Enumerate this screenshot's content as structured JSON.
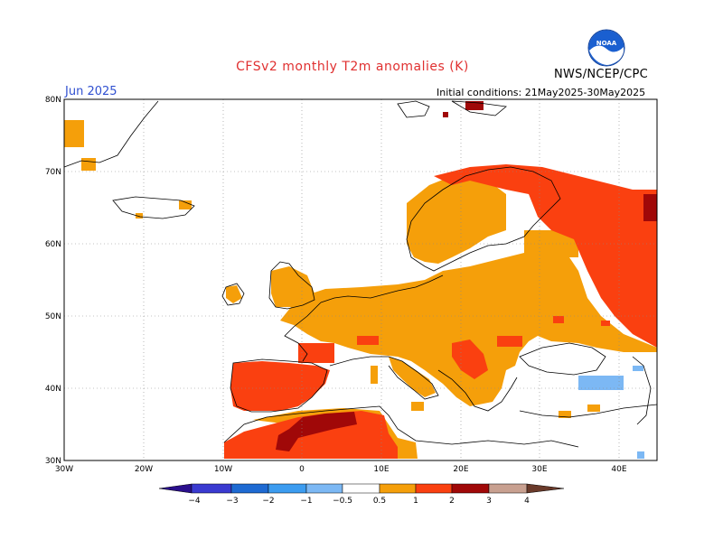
{
  "header": {
    "title": "CFSv2 monthly T2m anomalies (K)",
    "agency": "NWS/NCEP/CPC",
    "forecast_month": "Jun 2025",
    "initial_conditions": "Initial conditions: 21May2025-30May2025"
  },
  "map": {
    "region": "Europe",
    "lon_range": [
      -30,
      45
    ],
    "lat_range": [
      30,
      80
    ],
    "lat_labels": [
      "80N",
      "70N",
      "60N",
      "50N",
      "40N",
      "30N"
    ],
    "lon_labels": [
      "30W",
      "20W",
      "10W",
      "0",
      "10E",
      "20E",
      "30E",
      "40E"
    ],
    "gridlines": true
  },
  "colorbar": {
    "tick_labels": [
      "−4",
      "−3",
      "−2",
      "−1",
      "−0.5",
      "0.5",
      "1",
      "2",
      "3",
      "4"
    ],
    "colors": [
      "#2a0f8c",
      "#3a3ad0",
      "#1e6ad2",
      "#3c9cf0",
      "#7cb8f4",
      "#ffffff",
      "#f59f0a",
      "#fa4010",
      "#a00808",
      "#c8a090",
      "#6a3a2a"
    ]
  }
}
